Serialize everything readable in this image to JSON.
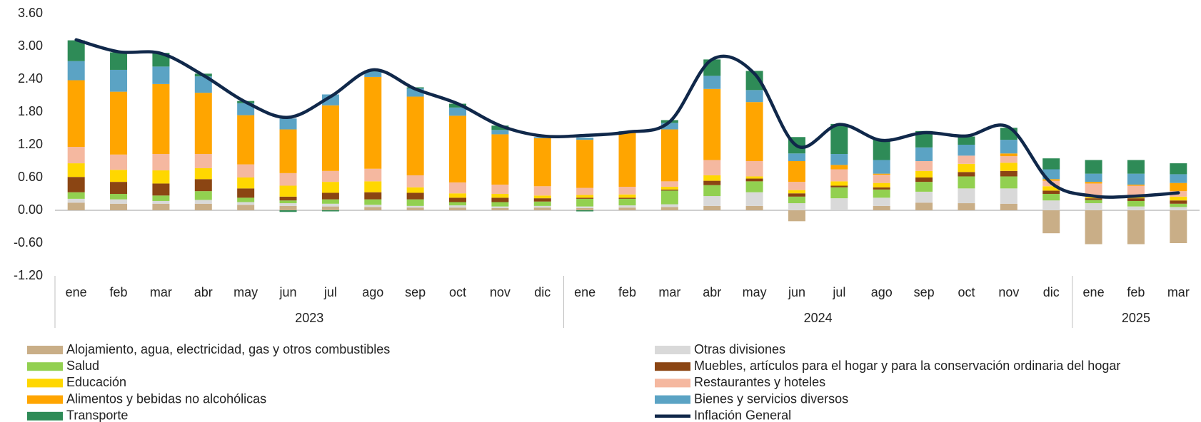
{
  "chart_data": {
    "type": "bar",
    "stacked": true,
    "categories": [
      "ene",
      "feb",
      "mar",
      "abr",
      "may",
      "jun",
      "jul",
      "ago",
      "sep",
      "oct",
      "nov",
      "dic",
      "ene",
      "feb",
      "mar",
      "abr",
      "may",
      "jun",
      "jul",
      "ago",
      "sep",
      "oct",
      "nov",
      "dic",
      "ene",
      "feb",
      "mar"
    ],
    "category_years": [
      "2023",
      "2023",
      "2023",
      "2023",
      "2023",
      "2023",
      "2023",
      "2023",
      "2023",
      "2023",
      "2023",
      "2023",
      "2024",
      "2024",
      "2024",
      "2024",
      "2024",
      "2024",
      "2024",
      "2024",
      "2024",
      "2024",
      "2024",
      "2024",
      "2025",
      "2025",
      "2025"
    ],
    "ylim": [
      -1.2,
      3.6
    ],
    "yticks": [
      {
        "value": 3.6,
        "label": "3.60"
      },
      {
        "value": 3.0,
        "label": "3.00"
      },
      {
        "value": 2.4,
        "label": "2.40"
      },
      {
        "value": 1.8,
        "label": "1.80"
      },
      {
        "value": 1.2,
        "label": "1.20"
      },
      {
        "value": 0.6,
        "label": "0.60"
      },
      {
        "value": 0,
        "label": "0.00"
      },
      {
        "value": -0.6,
        "label": "-0.60"
      },
      {
        "value": -1.2,
        "label": "-1.20"
      }
    ],
    "grid": false,
    "series": [
      {
        "name": "Alojamiento, agua, electricidad, gas y otros combustibles",
        "color": "#c9ae87",
        "values": [
          0.14,
          0.12,
          0.12,
          0.12,
          0.1,
          0.08,
          0.07,
          0.06,
          0.05,
          0.05,
          0.04,
          0.05,
          0.04,
          0.05,
          0.06,
          0.08,
          0.08,
          -0.2,
          0.0,
          0.08,
          0.14,
          0.13,
          0.12,
          -0.42,
          -0.62,
          -0.62,
          -0.6
        ]
      },
      {
        "name": "Otras divisiones",
        "color": "#d9d9d9",
        "values": [
          0.07,
          0.08,
          0.05,
          0.07,
          0.05,
          0.05,
          0.05,
          0.04,
          0.03,
          0.04,
          0.03,
          0.03,
          0.03,
          0.04,
          0.05,
          0.18,
          0.25,
          0.13,
          0.22,
          0.15,
          0.2,
          0.27,
          0.28,
          0.18,
          0.13,
          0.07,
          0.06
        ]
      },
      {
        "name": "Salud",
        "color": "#92d050",
        "values": [
          0.12,
          0.1,
          0.1,
          0.16,
          0.08,
          0.05,
          0.08,
          0.1,
          0.12,
          0.06,
          0.08,
          0.08,
          0.14,
          0.12,
          0.25,
          0.2,
          0.2,
          0.12,
          0.2,
          0.15,
          0.18,
          0.22,
          0.22,
          0.12,
          0.06,
          0.1,
          0.06
        ]
      },
      {
        "name": "Muebles, artículos para el hogar y para la conservación ordinaria del hogar",
        "color": "#8b4513",
        "values": [
          0.28,
          0.22,
          0.22,
          0.22,
          0.17,
          0.07,
          0.12,
          0.13,
          0.12,
          0.08,
          0.08,
          0.06,
          0.02,
          0.02,
          0.02,
          0.08,
          0.05,
          0.06,
          0.03,
          0.04,
          0.08,
          0.08,
          0.1,
          0.06,
          0.03,
          0.05,
          0.06
        ]
      },
      {
        "name": "Educación",
        "color": "#ffd700",
        "values": [
          0.25,
          0.22,
          0.24,
          0.2,
          0.2,
          0.2,
          0.2,
          0.2,
          0.1,
          0.08,
          0.07,
          0.05,
          0.05,
          0.06,
          0.05,
          0.1,
          0.04,
          0.06,
          0.08,
          0.08,
          0.12,
          0.15,
          0.15,
          0.08,
          0.02,
          0.03,
          0.07
        ]
      },
      {
        "name": "Restaurantes y hoteles",
        "color": "#f5b8a0",
        "values": [
          0.3,
          0.28,
          0.3,
          0.26,
          0.24,
          0.23,
          0.2,
          0.23,
          0.22,
          0.2,
          0.17,
          0.17,
          0.13,
          0.14,
          0.1,
          0.28,
          0.28,
          0.15,
          0.22,
          0.15,
          0.18,
          0.15,
          0.12,
          0.1,
          0.25,
          0.2,
          0.1
        ]
      },
      {
        "name": "Alimentos y bebidas no alcohólicas",
        "color": "#ffa500",
        "values": [
          1.22,
          1.15,
          1.28,
          1.12,
          0.9,
          0.8,
          1.2,
          1.68,
          1.44,
          1.22,
          0.92,
          0.88,
          0.88,
          1.0,
          0.95,
          1.3,
          1.08,
          0.38,
          0.08,
          0.02,
          0.0,
          0.0,
          0.05,
          0.03,
          0.03,
          0.02,
          0.15
        ]
      },
      {
        "name": "Bienes y servicios diversos",
        "color": "#5ba3c4",
        "values": [
          0.35,
          0.4,
          0.32,
          0.3,
          0.22,
          0.2,
          0.2,
          0.1,
          0.15,
          0.15,
          0.08,
          0.02,
          0.04,
          0.02,
          0.12,
          0.24,
          0.22,
          0.14,
          0.2,
          0.25,
          0.25,
          0.2,
          0.25,
          0.18,
          0.15,
          0.2,
          0.16
        ]
      },
      {
        "name": "Transporte",
        "color": "#2e8b57",
        "values": [
          0.38,
          0.32,
          0.25,
          0.05,
          0.04,
          -0.03,
          -0.02,
          0.02,
          0.02,
          0.07,
          0.08,
          0.0,
          -0.02,
          0.0,
          0.05,
          0.3,
          0.35,
          0.3,
          0.55,
          0.38,
          0.3,
          0.15,
          0.22,
          0.2,
          0.25,
          0.25,
          0.2
        ]
      }
    ],
    "line": {
      "type": "line",
      "name": "Inflación General",
      "color": "#10284a",
      "values": [
        3.12,
        2.9,
        2.87,
        2.47,
        1.98,
        1.7,
        2.08,
        2.57,
        2.22,
        1.95,
        1.55,
        1.36,
        1.37,
        1.43,
        1.62,
        2.76,
        2.5,
        1.18,
        1.57,
        1.28,
        1.42,
        1.36,
        1.52,
        0.5,
        0.26,
        0.26,
        0.32
      ]
    }
  }
}
